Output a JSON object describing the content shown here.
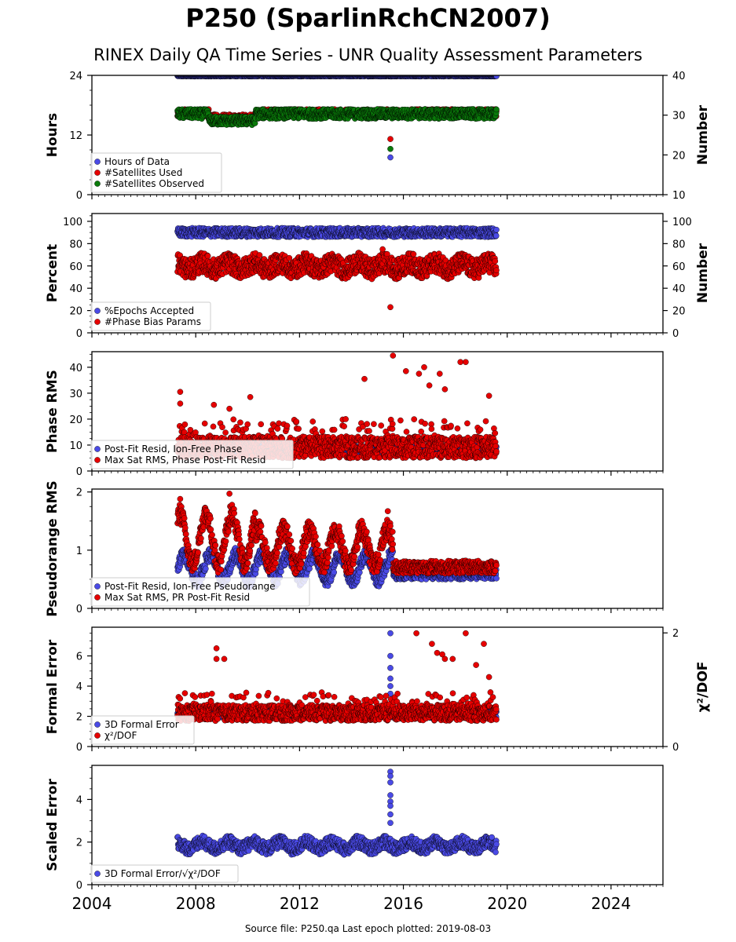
{
  "title": "P250 (SparlinRchCN2007)",
  "subtitle": "RINEX Daily QA Time Series - UNR Quality Assessment Parameters",
  "footer": "Source file: P250.qa Last epoch plotted: 2019-08-03",
  "chart_data": [
    {
      "type": "scatter",
      "ylabel": "Hours",
      "ylabel_right": "Number",
      "ylim": [
        0,
        24
      ],
      "yticks": [
        0,
        12,
        24
      ],
      "ylim_right": [
        10,
        40
      ],
      "yticks_right": [
        10,
        20,
        30,
        40
      ],
      "legend": "bottom-left",
      "series": [
        {
          "name": "Hours of Data",
          "color": "#4a4ae6",
          "axis": "left",
          "pattern": "flat",
          "range": [
            23.8,
            24.0
          ],
          "outliers": [
            [
              2015.5,
              7.5
            ]
          ]
        },
        {
          "name": "#Satellites Used",
          "color": "#e60000",
          "axis": "right",
          "pattern": "sats",
          "range": [
            28.5,
            31.5
          ],
          "outliers": [
            [
              2015.5,
              24
            ]
          ]
        },
        {
          "name": "#Satellites Observed",
          "color": "#0a7a0a",
          "axis": "right",
          "pattern": "sats",
          "range": [
            27.5,
            31.5
          ],
          "outliers": [
            [
              2015.5,
              21.5
            ]
          ]
        }
      ]
    },
    {
      "type": "scatter",
      "ylabel": "Percent",
      "ylabel_right": "Number",
      "ylim": [
        0,
        107
      ],
      "yticks": [
        0,
        20,
        40,
        60,
        80,
        100
      ],
      "ylim_right": [
        0,
        107
      ],
      "yticks_right": [
        0,
        20,
        40,
        60,
        80,
        100
      ],
      "legend": "bottom-left",
      "series": [
        {
          "name": "%Epochs Accepted",
          "color": "#4a4ae6",
          "axis": "left",
          "pattern": "flat",
          "range": [
            86,
            94
          ],
          "outliers": []
        },
        {
          "name": "#Phase Bias Params",
          "color": "#e60000",
          "axis": "right",
          "pattern": "wave",
          "range": [
            48,
            72
          ],
          "outliers": [
            [
              2015.5,
              23
            ],
            [
              2015.2,
              75
            ]
          ]
        }
      ]
    },
    {
      "type": "scatter",
      "ylabel": "Phase RMS",
      "ylim": [
        0,
        46
      ],
      "yticks": [
        0,
        10,
        20,
        30,
        40
      ],
      "legend": "bottom-left",
      "series": [
        {
          "name": "Post-Fit Resid, Ion-Free Phase",
          "color": "#4a4ae6",
          "axis": "left",
          "pattern": "flat",
          "range": [
            6.5,
            10
          ],
          "outliers": []
        },
        {
          "name": "Max Sat RMS, Phase Post-Fit Resid",
          "color": "#e60000",
          "axis": "left",
          "pattern": "spiky",
          "range": [
            5,
            20
          ],
          "outliers": [
            [
              2007.4,
              30.5
            ],
            [
              2007.4,
              26
            ],
            [
              2008.7,
              25.5
            ],
            [
              2009.3,
              24
            ],
            [
              2010.1,
              28.5
            ],
            [
              2014.5,
              35.5
            ],
            [
              2015.6,
              44.5
            ],
            [
              2016.1,
              38.5
            ],
            [
              2016.6,
              37.5
            ],
            [
              2016.8,
              40
            ],
            [
              2017.0,
              33
            ],
            [
              2017.4,
              37.5
            ],
            [
              2017.6,
              31.5
            ],
            [
              2018.2,
              42
            ],
            [
              2018.4,
              42
            ],
            [
              2019.3,
              29
            ]
          ]
        }
      ]
    },
    {
      "type": "scatter",
      "ylabel": "Pseudorange RMS",
      "ylim": [
        0,
        2.05
      ],
      "yticks": [
        0,
        1,
        2
      ],
      "legend": "bottom-left",
      "series": [
        {
          "name": "Post-Fit Resid, Ion-Free Pseudorange",
          "color": "#4a4ae6",
          "axis": "left",
          "pattern": "pr_blue",
          "range": [
            0.4,
            1.2
          ],
          "outliers": []
        },
        {
          "name": "Max Sat RMS, PR Post-Fit Resid",
          "color": "#e60000",
          "axis": "left",
          "pattern": "pr_red",
          "range": [
            0.5,
            1.95
          ],
          "outliers": [
            [
              2009.3,
              1.97
            ],
            [
              2007.4,
              1.88
            ],
            [
              2015.4,
              1.67
            ]
          ]
        }
      ]
    },
    {
      "type": "scatter",
      "ylabel": "Formal Error",
      "ylabel_right": "χ²/DOF",
      "ylim": [
        0,
        7.9
      ],
      "yticks": [
        0,
        2,
        4,
        6
      ],
      "ylim_right": [
        0,
        2.1
      ],
      "yticks_right": [
        0,
        2
      ],
      "legend": "bottom-left",
      "series": [
        {
          "name": "3D Formal Error",
          "color": "#4a4ae6",
          "axis": "left",
          "pattern": "flat",
          "range": [
            1.9,
            2.4
          ],
          "outliers": [
            [
              2015.5,
              7.5
            ],
            [
              2015.5,
              6.0
            ],
            [
              2015.5,
              5.2
            ],
            [
              2015.5,
              4.5
            ],
            [
              2015.5,
              4.0
            ],
            [
              2015.5,
              3.5
            ]
          ]
        },
        {
          "name": "χ²/DOF",
          "color": "#e60000",
          "axis": "left",
          "pattern": "spiky",
          "range": [
            1.7,
            3.6
          ],
          "outliers": [
            [
              2008.8,
              6.5
            ],
            [
              2008.8,
              5.8
            ],
            [
              2009.1,
              5.8
            ],
            [
              2016.5,
              7.5
            ],
            [
              2017.1,
              6.8
            ],
            [
              2017.3,
              6.2
            ],
            [
              2017.5,
              6.1
            ],
            [
              2017.6,
              5.8
            ],
            [
              2017.9,
              5.8
            ],
            [
              2018.4,
              7.5
            ],
            [
              2018.8,
              5.4
            ],
            [
              2019.1,
              6.8
            ],
            [
              2019.3,
              4.6
            ]
          ]
        }
      ]
    },
    {
      "type": "scatter",
      "ylabel": "Scaled Error",
      "ylim": [
        0,
        5.6
      ],
      "yticks": [
        0,
        2,
        4
      ],
      "legend": "bottom-left",
      "series": [
        {
          "name": "3D Formal Error/√χ²/DOF",
          "color": "#4a4ae6",
          "axis": "left",
          "pattern": "wave_small",
          "range": [
            1.3,
            2.5
          ],
          "outliers": [
            [
              2015.5,
              5.3
            ],
            [
              2015.5,
              5.1
            ],
            [
              2015.5,
              4.8
            ],
            [
              2015.5,
              4.2
            ],
            [
              2015.5,
              3.9
            ],
            [
              2015.5,
              3.7
            ],
            [
              2015.5,
              3.3
            ],
            [
              2015.5,
              2.9
            ]
          ]
        }
      ]
    }
  ],
  "x_axis": {
    "xlim": [
      2004.0,
      2026.0
    ],
    "ticks": [
      "2004",
      "2008",
      "2012",
      "2016",
      "2020",
      "2024"
    ],
    "data_start": 2007.3,
    "data_end": 2019.59
  }
}
